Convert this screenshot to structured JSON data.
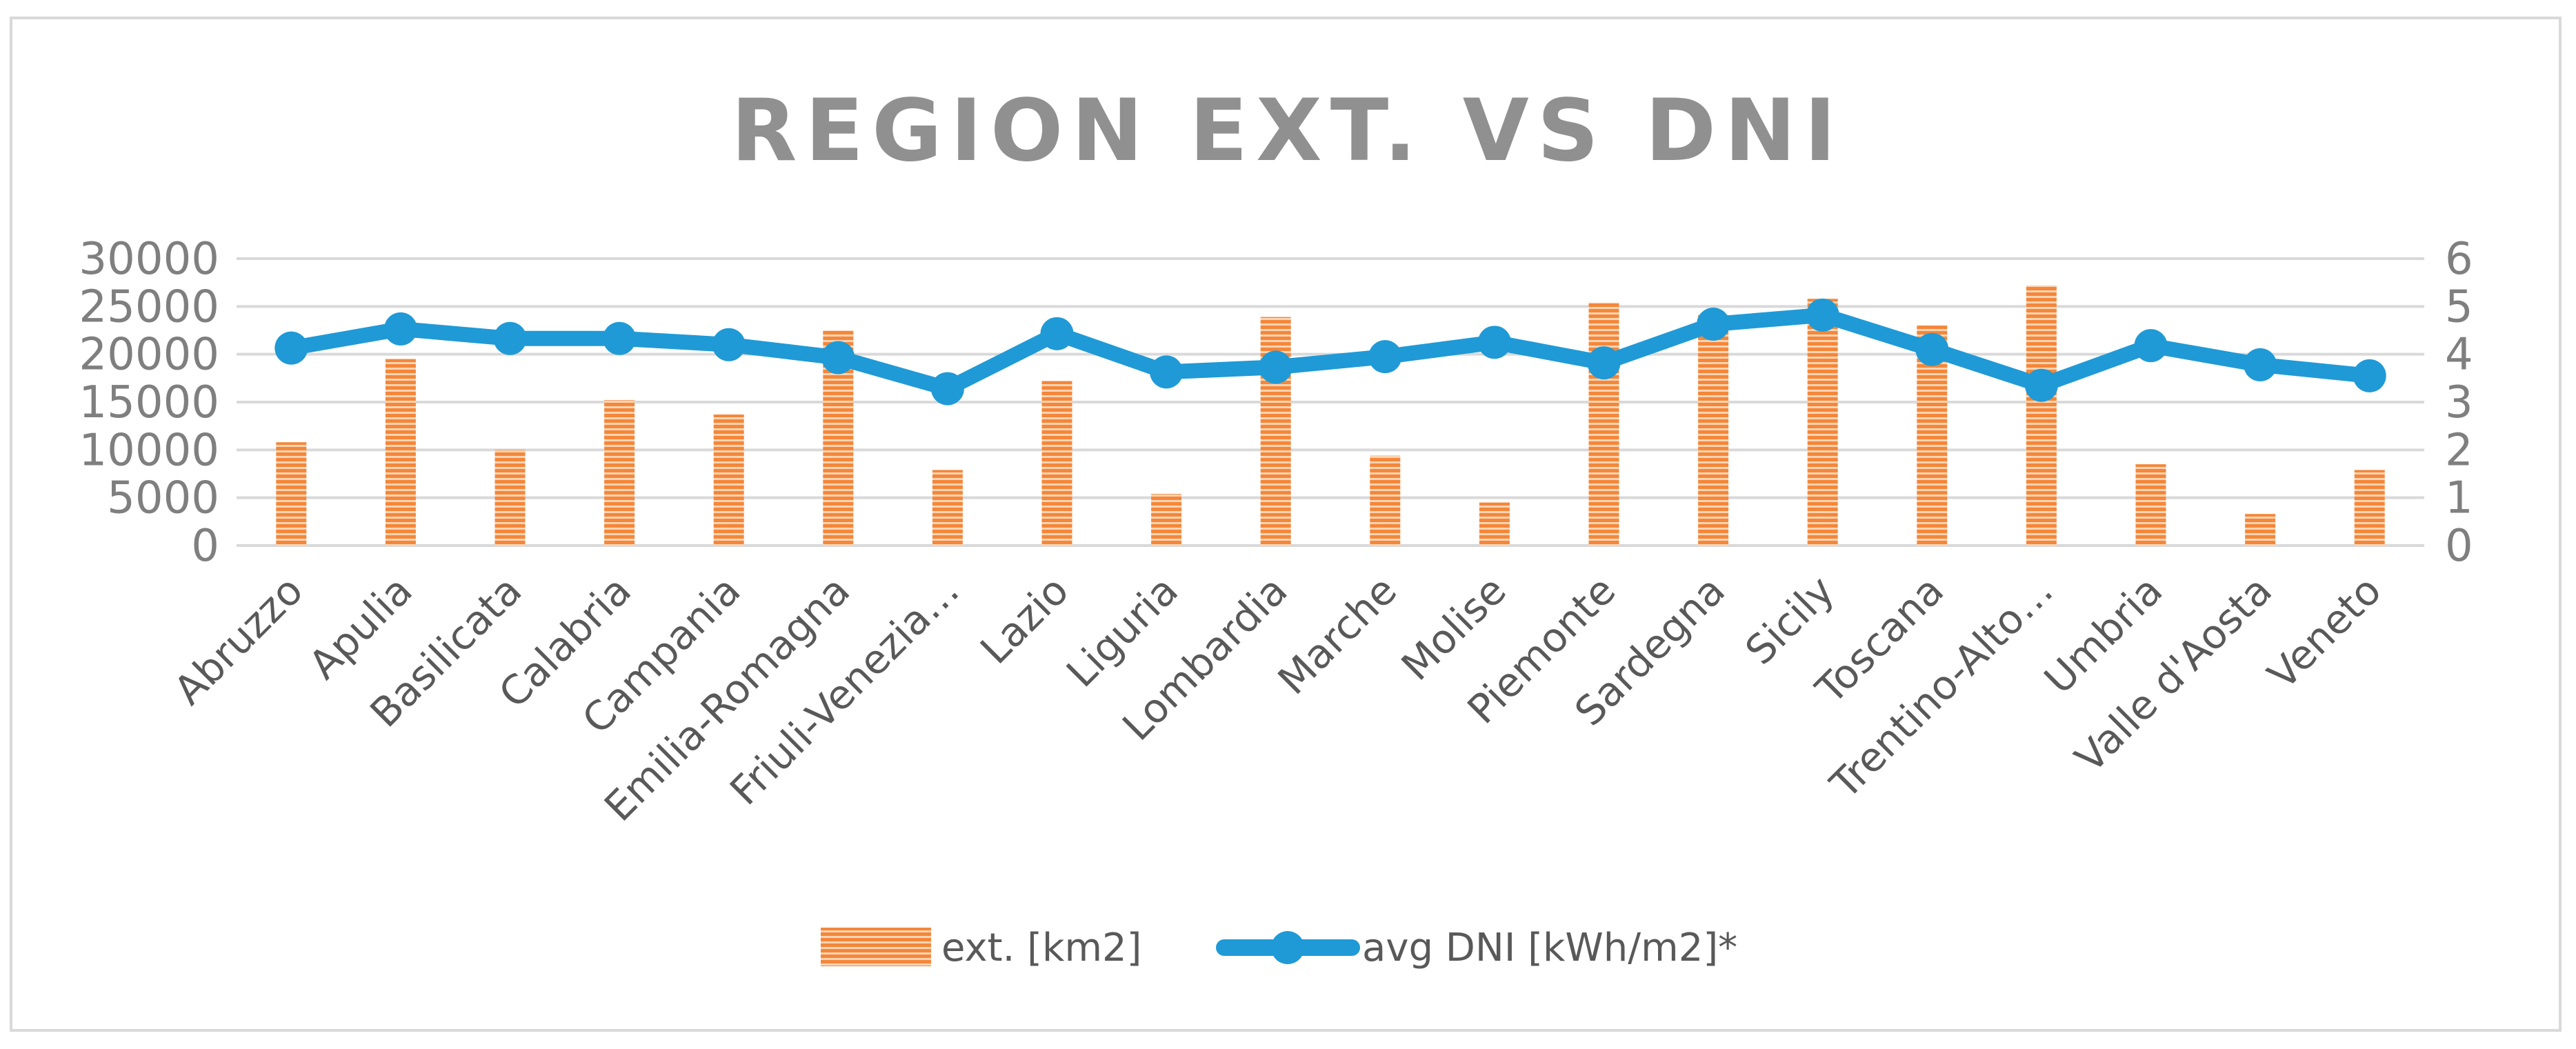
{
  "chart_data": {
    "type": "bar+line",
    "title": "REGION EXT. VS DNI",
    "categories": [
      "Abruzzo",
      "Apulia",
      "Basilicata",
      "Calabria",
      "Campania",
      "Emilia-Romagna",
      "Friuli-Venezia…",
      "Lazio",
      "Liguria",
      "Lombardia",
      "Marche",
      "Molise",
      "Piemonte",
      "Sardegna",
      "Sicily",
      "Toscana",
      "Trentino-Alto…",
      "Umbria",
      "Valle d'Aosta",
      "Veneto"
    ],
    "series": [
      {
        "name": "ext. [km2]",
        "type": "bar",
        "axis": "left",
        "values": [
          10800,
          19500,
          10000,
          15200,
          13700,
          22500,
          7900,
          17200,
          5400,
          23900,
          9400,
          4500,
          25400,
          24100,
          25800,
          23000,
          27200,
          8500,
          3300,
          7900
        ]
      },
      {
        "name": "avg DNI [kWh/m2]*",
        "type": "line",
        "axis": "right",
        "values": [
          4.13,
          4.53,
          4.33,
          4.33,
          4.2,
          3.93,
          3.28,
          4.43,
          3.63,
          3.73,
          3.95,
          4.25,
          3.82,
          4.63,
          4.82,
          4.1,
          3.35,
          4.18,
          3.78,
          3.55
        ]
      }
    ],
    "y_left": {
      "min": 0,
      "max": 30000,
      "ticks": [
        "0",
        "5000",
        "10000",
        "15000",
        "20000",
        "25000",
        "30000"
      ]
    },
    "y_right": {
      "min": 0,
      "max": 6,
      "ticks": [
        "0",
        "1",
        "2",
        "3",
        "4",
        "5",
        "6"
      ]
    },
    "grid": true,
    "legend_position": "bottom",
    "colors": {
      "bar": "#f4873a",
      "bar_stripe": "#fbd4b4",
      "line": "#1f9ad6",
      "grid": "#d9d9d9",
      "title": "#909090",
      "axis_text": "#7f7f7f"
    }
  }
}
